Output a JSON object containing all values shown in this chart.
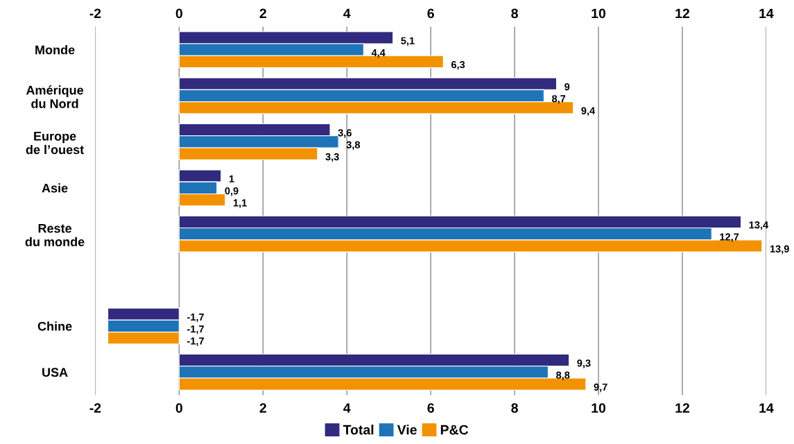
{
  "chart_data": {
    "type": "bar",
    "orientation": "horizontal",
    "categories": [
      "Monde",
      "Amérique\ndu Nord",
      "Europe\nde l’ouest",
      "Asie",
      "Reste\ndu monde",
      null,
      "Chine",
      "USA"
    ],
    "series": [
      {
        "name": "Total",
        "color": "#312a7f",
        "values": [
          5.1,
          9,
          3.6,
          1,
          13.4,
          null,
          -1.7,
          9.3
        ],
        "value_labels": [
          "5,1",
          "9",
          "3,6",
          "1",
          "13,4",
          null,
          "-1,7",
          "9,3"
        ]
      },
      {
        "name": "Vie",
        "color": "#1f74b8",
        "values": [
          4.4,
          8.7,
          3.8,
          0.9,
          12.7,
          null,
          -1.7,
          8.8
        ],
        "value_labels": [
          "4,4",
          "8,7",
          "3,8",
          "0,9",
          "12,7",
          null,
          "-1,7",
          "8,8"
        ]
      },
      {
        "name": "P&C",
        "color": "#f39200",
        "values": [
          6.3,
          9.4,
          3.3,
          1.1,
          13.9,
          null,
          -1.7,
          9.7
        ],
        "value_labels": [
          "6,3",
          "9,4",
          "3,3",
          "1,1",
          "13,9",
          null,
          "-1,7",
          "9,7"
        ]
      }
    ],
    "xlim": [
      -2,
      14
    ],
    "xticks": [
      -2,
      0,
      2,
      4,
      6,
      8,
      10,
      12,
      14
    ],
    "x2lim": [
      -2,
      14
    ],
    "x2ticks": [
      -2,
      0,
      2,
      4,
      6,
      8,
      10,
      12,
      14
    ],
    "grid": "x",
    "legend": "bottom"
  }
}
